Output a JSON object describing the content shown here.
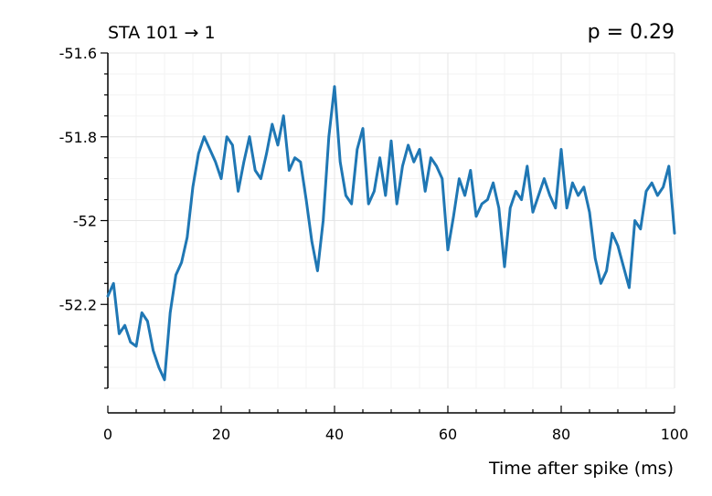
{
  "chart_data": {
    "type": "line",
    "title": "STA 101 → 1",
    "title_right": "p = 0.29",
    "xlabel": "Time after spike (ms)",
    "ylabel": "",
    "xlim": [
      0,
      100
    ],
    "ylim": [
      -52.4,
      -51.6
    ],
    "xticks": [
      0,
      20,
      40,
      60,
      80,
      100
    ],
    "xtick_labels": [
      "0",
      "20",
      "40",
      "60",
      "80",
      "100"
    ],
    "yticks": [
      -51.6,
      -51.8,
      -52.0,
      -52.2
    ],
    "ytick_labels": [
      "-51.6",
      "-51.8",
      "-52",
      "-52.2"
    ],
    "grid": true,
    "legend": "none",
    "color": "#1f77b4",
    "series": [
      {
        "x": [
          0,
          1,
          2,
          3,
          4,
          5,
          6,
          7,
          8,
          9,
          10,
          11,
          12,
          13,
          14,
          15,
          16,
          17,
          18,
          19,
          20,
          21,
          22,
          23,
          24,
          25,
          26,
          27,
          28,
          29,
          30,
          31,
          32,
          33,
          34,
          35,
          36,
          37,
          38,
          39,
          40,
          41,
          42,
          43,
          44,
          45,
          46,
          47,
          48,
          49,
          50,
          51,
          52,
          53,
          54,
          55,
          56,
          57,
          58,
          59,
          60,
          61,
          62,
          63,
          64,
          65,
          66,
          67,
          68,
          69,
          70,
          71,
          72,
          73,
          74,
          75,
          76,
          77,
          78,
          79,
          80,
          81,
          82,
          83,
          84,
          85,
          86,
          87,
          88,
          89,
          90,
          91,
          92,
          93,
          94,
          95,
          96,
          97,
          98,
          99,
          100
        ],
        "values": [
          -52.18,
          -52.15,
          -52.27,
          -52.25,
          -52.29,
          -52.3,
          -52.22,
          -52.24,
          -52.31,
          -52.35,
          -52.38,
          -52.22,
          -52.13,
          -52.1,
          -52.04,
          -51.92,
          -51.84,
          -51.8,
          -51.83,
          -51.86,
          -51.9,
          -51.8,
          -51.82,
          -51.93,
          -51.86,
          -51.8,
          -51.88,
          -51.9,
          -51.84,
          -51.77,
          -51.82,
          -51.75,
          -51.88,
          -51.85,
          -51.86,
          -51.95,
          -52.05,
          -52.12,
          -52.0,
          -51.8,
          -51.68,
          -51.86,
          -51.94,
          -51.96,
          -51.83,
          -51.78,
          -51.96,
          -51.93,
          -51.85,
          -51.94,
          -51.81,
          -51.96,
          -51.87,
          -51.82,
          -51.86,
          -51.83,
          -51.93,
          -51.85,
          -51.87,
          -51.9,
          -52.07,
          -51.99,
          -51.9,
          -51.94,
          -51.88,
          -51.99,
          -51.96,
          -51.95,
          -51.91,
          -51.97,
          -52.11,
          -51.97,
          -51.93,
          -51.95,
          -51.87,
          -51.98,
          -51.94,
          -51.9,
          -51.94,
          -51.97,
          -51.83,
          -51.97,
          -51.91,
          -51.94,
          -51.92,
          -51.98,
          -52.09,
          -52.15,
          -52.12,
          -52.03,
          -52.06,
          -52.11,
          -52.16,
          -52.0,
          -52.02,
          -51.93,
          -51.91,
          -51.94,
          -51.92,
          -51.87,
          -52.03
        ]
      }
    ]
  }
}
